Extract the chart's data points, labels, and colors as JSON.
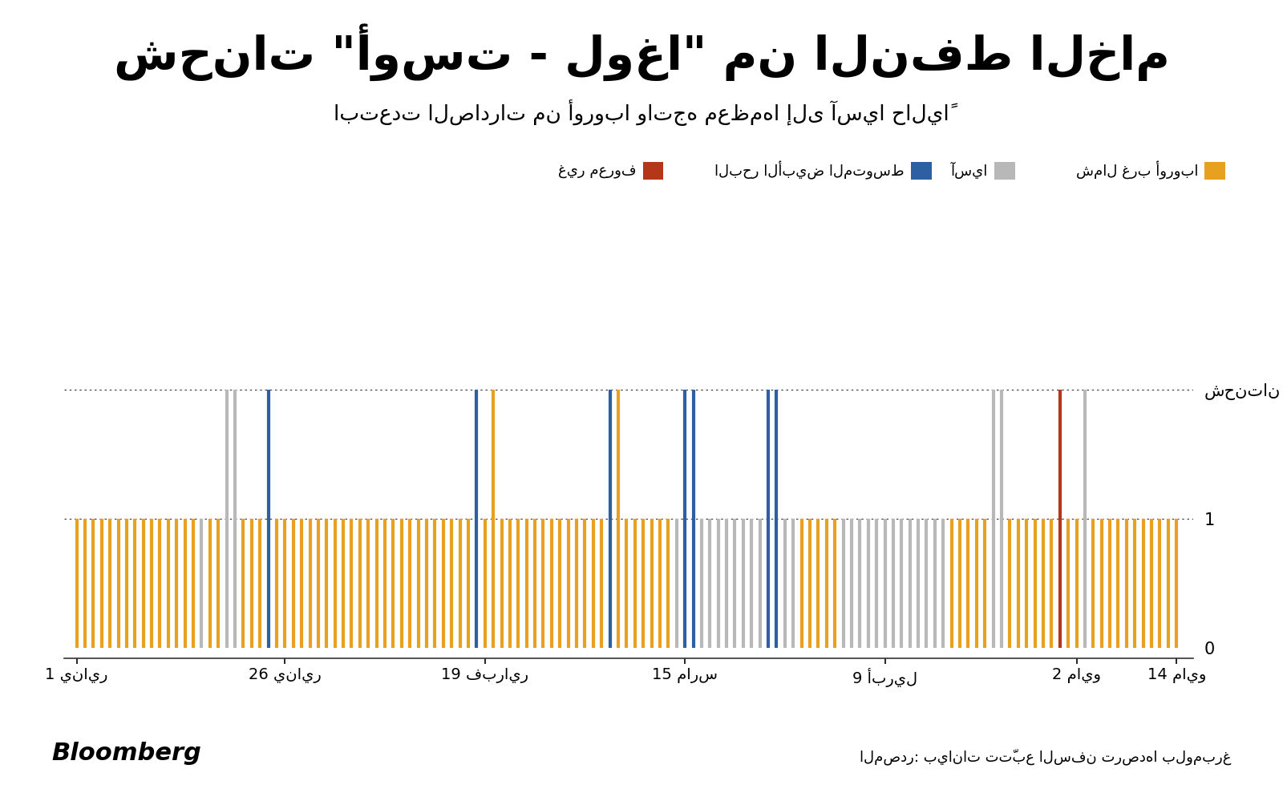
{
  "title": "شحنات \"أوست - لوغا\" من النفط الخام",
  "subtitle": "ابتعدت الصادرات من أوروبا واتجه معظمها إلى آسيا حالياً",
  "ylabel_top": "شحنتان",
  "source_text": "المصدر: بيانات تتّبع السفن ترصدها بلومبرغ",
  "bloomberg_text": "Bloomberg",
  "colors": {
    "northwest_europe": "#E8A020",
    "asia": "#B8B8B8",
    "mediterranean": "#2E5FA3",
    "unknown": "#B5371A"
  },
  "legend_labels": {
    "northwest_europe": "شمال غرب أوروبا",
    "asia": "آسيا",
    "mediterranean": "البحر الأبيض المتوسط",
    "unknown": "غير معروف"
  },
  "xtick_labels": [
    "1 يناير",
    "26 يناير",
    "19 فبراير",
    "15 مارس",
    "9 أبريل",
    "2 مايو",
    "14 مايو"
  ],
  "xtick_positions": [
    1,
    26,
    50,
    74,
    98,
    121,
    133
  ],
  "background_color": "#FFFFFF",
  "shipments": [
    {
      "day": 1,
      "value": 1,
      "color": "northwest_europe"
    },
    {
      "day": 2,
      "value": 1,
      "color": "northwest_europe"
    },
    {
      "day": 3,
      "value": 1,
      "color": "northwest_europe"
    },
    {
      "day": 4,
      "value": 1,
      "color": "northwest_europe"
    },
    {
      "day": 5,
      "value": 1,
      "color": "northwest_europe"
    },
    {
      "day": 6,
      "value": 1,
      "color": "northwest_europe"
    },
    {
      "day": 7,
      "value": 1,
      "color": "northwest_europe"
    },
    {
      "day": 8,
      "value": 1,
      "color": "northwest_europe"
    },
    {
      "day": 9,
      "value": 1,
      "color": "northwest_europe"
    },
    {
      "day": 10,
      "value": 1,
      "color": "northwest_europe"
    },
    {
      "day": 11,
      "value": 1,
      "color": "northwest_europe"
    },
    {
      "day": 12,
      "value": 1,
      "color": "northwest_europe"
    },
    {
      "day": 13,
      "value": 1,
      "color": "northwest_europe"
    },
    {
      "day": 14,
      "value": 1,
      "color": "northwest_europe"
    },
    {
      "day": 15,
      "value": 1,
      "color": "northwest_europe"
    },
    {
      "day": 16,
      "value": 1,
      "color": "asia"
    },
    {
      "day": 17,
      "value": 1,
      "color": "northwest_europe"
    },
    {
      "day": 18,
      "value": 1,
      "color": "northwest_europe"
    },
    {
      "day": 19,
      "value": 2,
      "color": "asia"
    },
    {
      "day": 20,
      "value": 2,
      "color": "asia"
    },
    {
      "day": 21,
      "value": 1,
      "color": "northwest_europe"
    },
    {
      "day": 22,
      "value": 1,
      "color": "northwest_europe"
    },
    {
      "day": 23,
      "value": 1,
      "color": "northwest_europe"
    },
    {
      "day": 24,
      "value": 2,
      "color": "mediterranean"
    },
    {
      "day": 25,
      "value": 1,
      "color": "northwest_europe"
    },
    {
      "day": 26,
      "value": 1,
      "color": "northwest_europe"
    },
    {
      "day": 27,
      "value": 1,
      "color": "northwest_europe"
    },
    {
      "day": 28,
      "value": 1,
      "color": "northwest_europe"
    },
    {
      "day": 29,
      "value": 1,
      "color": "northwest_europe"
    },
    {
      "day": 30,
      "value": 1,
      "color": "northwest_europe"
    },
    {
      "day": 31,
      "value": 1,
      "color": "northwest_europe"
    },
    {
      "day": 32,
      "value": 1,
      "color": "northwest_europe"
    },
    {
      "day": 33,
      "value": 1,
      "color": "northwest_europe"
    },
    {
      "day": 34,
      "value": 1,
      "color": "northwest_europe"
    },
    {
      "day": 35,
      "value": 1,
      "color": "northwest_europe"
    },
    {
      "day": 36,
      "value": 1,
      "color": "northwest_europe"
    },
    {
      "day": 37,
      "value": 1,
      "color": "northwest_europe"
    },
    {
      "day": 38,
      "value": 1,
      "color": "northwest_europe"
    },
    {
      "day": 39,
      "value": 1,
      "color": "northwest_europe"
    },
    {
      "day": 40,
      "value": 1,
      "color": "northwest_europe"
    },
    {
      "day": 41,
      "value": 1,
      "color": "northwest_europe"
    },
    {
      "day": 42,
      "value": 1,
      "color": "northwest_europe"
    },
    {
      "day": 43,
      "value": 1,
      "color": "northwest_europe"
    },
    {
      "day": 44,
      "value": 1,
      "color": "northwest_europe"
    },
    {
      "day": 45,
      "value": 1,
      "color": "northwest_europe"
    },
    {
      "day": 46,
      "value": 1,
      "color": "northwest_europe"
    },
    {
      "day": 47,
      "value": 1,
      "color": "northwest_europe"
    },
    {
      "day": 48,
      "value": 1,
      "color": "northwest_europe"
    },
    {
      "day": 49,
      "value": 2,
      "color": "mediterranean"
    },
    {
      "day": 50,
      "value": 1,
      "color": "northwest_europe"
    },
    {
      "day": 51,
      "value": 2,
      "color": "northwest_europe"
    },
    {
      "day": 52,
      "value": 1,
      "color": "northwest_europe"
    },
    {
      "day": 53,
      "value": 1,
      "color": "northwest_europe"
    },
    {
      "day": 54,
      "value": 1,
      "color": "northwest_europe"
    },
    {
      "day": 55,
      "value": 1,
      "color": "northwest_europe"
    },
    {
      "day": 56,
      "value": 1,
      "color": "northwest_europe"
    },
    {
      "day": 57,
      "value": 1,
      "color": "northwest_europe"
    },
    {
      "day": 58,
      "value": 1,
      "color": "northwest_europe"
    },
    {
      "day": 59,
      "value": 1,
      "color": "northwest_europe"
    },
    {
      "day": 60,
      "value": 1,
      "color": "northwest_europe"
    },
    {
      "day": 61,
      "value": 1,
      "color": "northwest_europe"
    },
    {
      "day": 62,
      "value": 1,
      "color": "northwest_europe"
    },
    {
      "day": 63,
      "value": 1,
      "color": "northwest_europe"
    },
    {
      "day": 64,
      "value": 1,
      "color": "northwest_europe"
    },
    {
      "day": 65,
      "value": 2,
      "color": "mediterranean"
    },
    {
      "day": 66,
      "value": 2,
      "color": "northwest_europe"
    },
    {
      "day": 67,
      "value": 1,
      "color": "northwest_europe"
    },
    {
      "day": 68,
      "value": 1,
      "color": "northwest_europe"
    },
    {
      "day": 69,
      "value": 1,
      "color": "northwest_europe"
    },
    {
      "day": 70,
      "value": 1,
      "color": "northwest_europe"
    },
    {
      "day": 71,
      "value": 1,
      "color": "northwest_europe"
    },
    {
      "day": 72,
      "value": 1,
      "color": "northwest_europe"
    },
    {
      "day": 73,
      "value": 1,
      "color": "asia"
    },
    {
      "day": 74,
      "value": 2,
      "color": "mediterranean"
    },
    {
      "day": 75,
      "value": 2,
      "color": "mediterranean"
    },
    {
      "day": 76,
      "value": 1,
      "color": "asia"
    },
    {
      "day": 77,
      "value": 1,
      "color": "asia"
    },
    {
      "day": 78,
      "value": 1,
      "color": "asia"
    },
    {
      "day": 79,
      "value": 1,
      "color": "asia"
    },
    {
      "day": 80,
      "value": 1,
      "color": "asia"
    },
    {
      "day": 81,
      "value": 1,
      "color": "asia"
    },
    {
      "day": 82,
      "value": 1,
      "color": "asia"
    },
    {
      "day": 83,
      "value": 1,
      "color": "asia"
    },
    {
      "day": 84,
      "value": 2,
      "color": "mediterranean"
    },
    {
      "day": 85,
      "value": 2,
      "color": "mediterranean"
    },
    {
      "day": 86,
      "value": 1,
      "color": "asia"
    },
    {
      "day": 87,
      "value": 1,
      "color": "asia"
    },
    {
      "day": 88,
      "value": 1,
      "color": "northwest_europe"
    },
    {
      "day": 89,
      "value": 1,
      "color": "northwest_europe"
    },
    {
      "day": 90,
      "value": 1,
      "color": "northwest_europe"
    },
    {
      "day": 91,
      "value": 1,
      "color": "northwest_europe"
    },
    {
      "day": 92,
      "value": 1,
      "color": "northwest_europe"
    },
    {
      "day": 93,
      "value": 1,
      "color": "asia"
    },
    {
      "day": 94,
      "value": 1,
      "color": "asia"
    },
    {
      "day": 95,
      "value": 1,
      "color": "asia"
    },
    {
      "day": 96,
      "value": 1,
      "color": "asia"
    },
    {
      "day": 97,
      "value": 1,
      "color": "asia"
    },
    {
      "day": 98,
      "value": 1,
      "color": "asia"
    },
    {
      "day": 99,
      "value": 1,
      "color": "asia"
    },
    {
      "day": 100,
      "value": 1,
      "color": "asia"
    },
    {
      "day": 101,
      "value": 1,
      "color": "asia"
    },
    {
      "day": 102,
      "value": 1,
      "color": "asia"
    },
    {
      "day": 103,
      "value": 1,
      "color": "asia"
    },
    {
      "day": 104,
      "value": 1,
      "color": "asia"
    },
    {
      "day": 105,
      "value": 1,
      "color": "asia"
    },
    {
      "day": 106,
      "value": 1,
      "color": "northwest_europe"
    },
    {
      "day": 107,
      "value": 1,
      "color": "northwest_europe"
    },
    {
      "day": 108,
      "value": 1,
      "color": "northwest_europe"
    },
    {
      "day": 109,
      "value": 1,
      "color": "northwest_europe"
    },
    {
      "day": 110,
      "value": 1,
      "color": "northwest_europe"
    },
    {
      "day": 111,
      "value": 2,
      "color": "asia"
    },
    {
      "day": 112,
      "value": 2,
      "color": "asia"
    },
    {
      "day": 113,
      "value": 1,
      "color": "northwest_europe"
    },
    {
      "day": 114,
      "value": 1,
      "color": "northwest_europe"
    },
    {
      "day": 115,
      "value": 1,
      "color": "northwest_europe"
    },
    {
      "day": 116,
      "value": 1,
      "color": "northwest_europe"
    },
    {
      "day": 117,
      "value": 1,
      "color": "northwest_europe"
    },
    {
      "day": 118,
      "value": 1,
      "color": "northwest_europe"
    },
    {
      "day": 119,
      "value": 2,
      "color": "unknown"
    },
    {
      "day": 120,
      "value": 1,
      "color": "northwest_europe"
    },
    {
      "day": 121,
      "value": 1,
      "color": "northwest_europe"
    },
    {
      "day": 122,
      "value": 2,
      "color": "asia"
    },
    {
      "day": 123,
      "value": 1,
      "color": "northwest_europe"
    },
    {
      "day": 124,
      "value": 1,
      "color": "northwest_europe"
    },
    {
      "day": 125,
      "value": 1,
      "color": "northwest_europe"
    },
    {
      "day": 126,
      "value": 1,
      "color": "northwest_europe"
    },
    {
      "day": 127,
      "value": 1,
      "color": "northwest_europe"
    },
    {
      "day": 128,
      "value": 1,
      "color": "northwest_europe"
    },
    {
      "day": 129,
      "value": 1,
      "color": "northwest_europe"
    },
    {
      "day": 130,
      "value": 1,
      "color": "northwest_europe"
    },
    {
      "day": 131,
      "value": 1,
      "color": "northwest_europe"
    },
    {
      "day": 132,
      "value": 1,
      "color": "northwest_europe"
    },
    {
      "day": 133,
      "value": 1,
      "color": "northwest_europe"
    }
  ]
}
